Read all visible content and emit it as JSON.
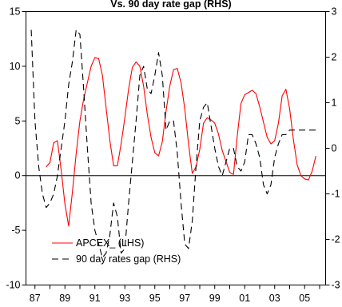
{
  "chart_data": {
    "type": "line",
    "title": "Vs. 90 day rate gap (RHS)",
    "x_ticks": [
      "87",
      "89",
      "91",
      "93",
      "95",
      "97",
      "99",
      "01",
      "03",
      "05"
    ],
    "y_left": {
      "ticks": [
        15,
        10,
        5,
        0,
        -5,
        -10
      ],
      "range": [
        -10,
        15
      ]
    },
    "y_right": {
      "ticks": [
        3,
        2,
        1,
        0,
        -1,
        -2,
        -3
      ],
      "range": [
        -3,
        3
      ]
    },
    "x_range": [
      86.4,
      106.4
    ],
    "legend_location": "lower-left",
    "series": [
      {
        "name": "APCEX_ (LHS)",
        "axis": "left",
        "color": "#ff0000",
        "style": "solid",
        "x": [
          87.75,
          88.0,
          88.25,
          88.5,
          88.75,
          89.0,
          89.25,
          89.5,
          89.75,
          90.0,
          90.25,
          90.5,
          90.75,
          91.0,
          91.25,
          91.5,
          91.75,
          92.0,
          92.25,
          92.5,
          92.75,
          93.0,
          93.25,
          93.5,
          93.75,
          94.0,
          94.25,
          94.5,
          94.75,
          95.0,
          95.25,
          95.5,
          95.75,
          96.0,
          96.25,
          96.5,
          96.75,
          97.0,
          97.25,
          97.5,
          97.75,
          98.0,
          98.25,
          98.5,
          98.75,
          99.0,
          99.25,
          99.5,
          99.75,
          100.0,
          100.25,
          100.5,
          100.75,
          101.0,
          101.25,
          101.5,
          101.75,
          102.0,
          102.25,
          102.5,
          102.75,
          103.0,
          103.25,
          103.5,
          103.75,
          104.0,
          104.25,
          104.5,
          104.75,
          105.0,
          105.25,
          105.5,
          105.75
        ],
        "y": [
          0.8,
          1.2,
          3.0,
          3.2,
          0.5,
          -2.6,
          -4.6,
          -1.5,
          2.0,
          5.0,
          7.0,
          8.5,
          10.0,
          10.8,
          10.7,
          9.2,
          6.2,
          3.2,
          0.9,
          0.9,
          2.9,
          5.3,
          7.9,
          9.9,
          10.4,
          10.0,
          8.2,
          5.6,
          3.5,
          2.1,
          1.8,
          3.1,
          5.9,
          8.2,
          9.7,
          9.8,
          8.5,
          6.1,
          2.9,
          0.2,
          0.8,
          2.4,
          4.8,
          5.3,
          5.1,
          4.8,
          3.8,
          2.3,
          1.3,
          0.3,
          0.1,
          3.6,
          6.6,
          7.4,
          7.6,
          7.8,
          7.5,
          6.3,
          4.9,
          3.5,
          2.9,
          3.2,
          4.8,
          7.3,
          7.9,
          6.1,
          3.3,
          1.0,
          0.0,
          -0.3,
          -0.4,
          0.4,
          1.8
        ]
      },
      {
        "name": "90 day rates gap (RHS)",
        "axis": "right",
        "color": "#000000",
        "style": "dashed",
        "x": [
          86.75,
          87.0,
          87.25,
          87.5,
          87.75,
          88.0,
          88.25,
          88.5,
          88.75,
          89.0,
          89.25,
          89.5,
          89.75,
          90.0,
          90.25,
          90.5,
          90.75,
          91.0,
          91.25,
          91.5,
          91.75,
          92.0,
          92.25,
          92.5,
          92.75,
          93.0,
          93.25,
          93.5,
          93.75,
          94.0,
          94.25,
          94.5,
          94.75,
          95.0,
          95.25,
          95.5,
          95.75,
          96.0,
          96.25,
          96.5,
          96.75,
          97.0,
          97.25,
          97.5,
          97.75,
          98.0,
          98.25,
          98.5,
          98.75,
          99.0,
          99.25,
          99.5,
          99.75,
          100.0,
          100.25,
          100.5,
          100.75,
          101.0,
          101.25,
          101.5,
          101.75,
          102.0,
          102.25,
          102.5,
          102.75,
          103.0,
          103.25,
          103.5,
          103.75,
          104.0,
          104.25,
          104.5,
          104.75,
          105.0,
          105.25,
          105.5,
          105.75
        ],
        "y": [
          2.6,
          0.6,
          -0.4,
          -1.0,
          -1.3,
          -1.2,
          -1.0,
          -0.6,
          0.0,
          0.6,
          1.4,
          1.9,
          2.6,
          2.5,
          1.3,
          0.0,
          -1.2,
          -1.8,
          -2.1,
          -2.4,
          -2.3,
          -1.9,
          -1.2,
          -1.5,
          -2.3,
          -2.2,
          -1.2,
          -0.3,
          0.6,
          1.6,
          1.8,
          1.3,
          1.2,
          1.6,
          2.1,
          1.6,
          0.4,
          0.6,
          0.6,
          -0.1,
          -1.2,
          -2.1,
          -2.2,
          -1.6,
          -0.4,
          0.6,
          0.9,
          1.0,
          0.5,
          0.0,
          -0.4,
          -0.6,
          -0.3,
          0.0,
          0.0,
          -0.4,
          -0.5,
          -0.3,
          0.3,
          0.3,
          0.1,
          -0.2,
          -0.8,
          -1.0,
          -0.8,
          -0.2,
          0.1,
          0.3,
          0.3,
          0.4,
          0.4,
          0.4,
          0.4,
          0.4,
          0.4,
          0.4,
          0.4
        ]
      }
    ]
  }
}
